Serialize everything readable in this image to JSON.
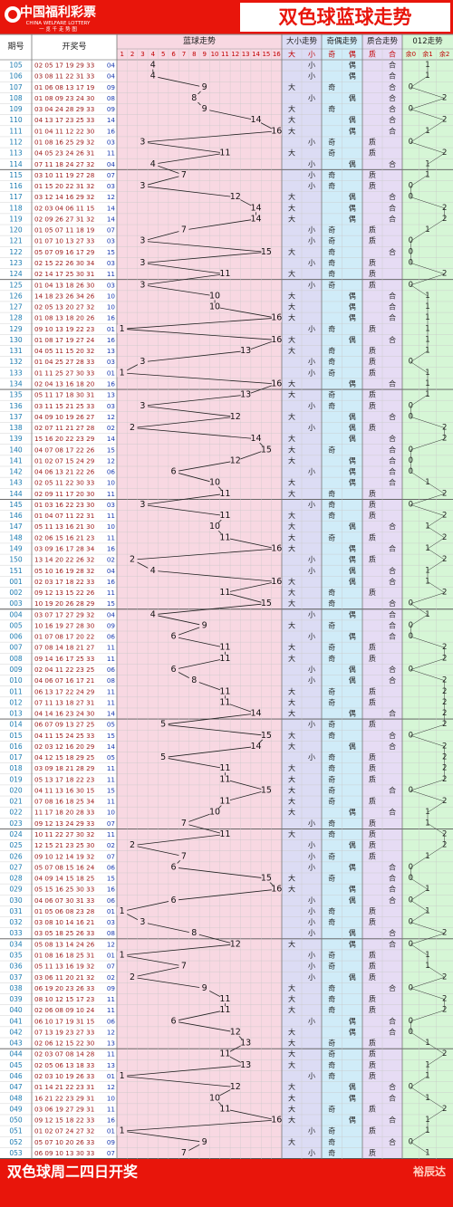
{
  "header": {
    "logo_cn": "中国福利彩票",
    "logo_en": "CHINA WELFARE LOTTERY",
    "logo_sub": "一 览 千 走 势 图",
    "title": "双色球蓝球走势"
  },
  "columns": {
    "period": "期号",
    "draw": "开奖号",
    "blue": "蓝球走势",
    "size": "大小走势",
    "parity": "奇偶走势",
    "prime": "质合走势",
    "mod": "012走势"
  },
  "subcolumns": {
    "blue_numbers": [
      "1",
      "2",
      "3",
      "4",
      "5",
      "6",
      "7",
      "8",
      "9",
      "10",
      "11",
      "12",
      "13",
      "14",
      "15",
      "16"
    ],
    "size": [
      "大",
      "小"
    ],
    "parity": [
      "奇",
      "偶"
    ],
    "prime": [
      "质",
      "合"
    ],
    "mod": [
      "余0",
      "余1",
      "余2"
    ]
  },
  "footer": {
    "left": "双色球周二四日开奖",
    "right": "裕辰达"
  },
  "colors": {
    "header_bg": "#e8150b",
    "title_bg": "#ffffff",
    "title_text": "#e8150b",
    "pink": "#f8d8e2",
    "lavender": "#dcdcf4",
    "blue": "#d0ecf8",
    "lilac": "#e6dcf4",
    "green": "#d6f6d6",
    "period_text": "#1a7ab0",
    "draw_text": "#9c1a1a",
    "grid": "#c8c8c8"
  },
  "chart_data": {
    "type": "table",
    "rows": [
      {
        "p": "105",
        "d": "02 05 17 19 29 33",
        "b": "04"
      },
      {
        "p": "106",
        "d": "03 08 11 22 31 33",
        "b": "04"
      },
      {
        "p": "107",
        "d": "01 06 08 13 17 19",
        "b": "09"
      },
      {
        "p": "108",
        "d": "01 08 09 23 24 30",
        "b": "08"
      },
      {
        "p": "109",
        "d": "03 04 24 28 29 33",
        "b": "09"
      },
      {
        "p": "110",
        "d": "04 13 17 23 25 33",
        "b": "14"
      },
      {
        "p": "111",
        "d": "01 04 11 12 22 30",
        "b": "16"
      },
      {
        "p": "112",
        "d": "01 08 16 25 29 32",
        "b": "03"
      },
      {
        "p": "113",
        "d": "04 05 23 24 26 31",
        "b": "11"
      },
      {
        "p": "114",
        "d": "07 11 18 24 27 32",
        "b": "04"
      },
      {
        "p": "115",
        "d": "03 10 11 19 27 28",
        "b": "07"
      },
      {
        "p": "116",
        "d": "01 15 20 22 31 32",
        "b": "03"
      },
      {
        "p": "117",
        "d": "03 12 14 16 29 32",
        "b": "12"
      },
      {
        "p": "118",
        "d": "02 03 04 06 11 15",
        "b": "14"
      },
      {
        "p": "119",
        "d": "02 09 26 27 31 32",
        "b": "14"
      },
      {
        "p": "120",
        "d": "01 05 07 11 18 19",
        "b": "07"
      },
      {
        "p": "121",
        "d": "01 07 10 13 27 33",
        "b": "03"
      },
      {
        "p": "122",
        "d": "05 07 09 16 17 29",
        "b": "15"
      },
      {
        "p": "123",
        "d": "02 15 22 26 30 34",
        "b": "03"
      },
      {
        "p": "124",
        "d": "02 14 17 25 30 31",
        "b": "11"
      },
      {
        "p": "125",
        "d": "01 04 13 18 26 30",
        "b": "03"
      },
      {
        "p": "126",
        "d": "14 18 23 26 34 26",
        "b": "10"
      },
      {
        "p": "127",
        "d": "02 05 13 20 27 32",
        "b": "10"
      },
      {
        "p": "128",
        "d": "01 08 13 18 20 26",
        "b": "16"
      },
      {
        "p": "129",
        "d": "09 10 13 19 22 23",
        "b": "01"
      },
      {
        "p": "130",
        "d": "01 08 17 19 27 24",
        "b": "16"
      },
      {
        "p": "131",
        "d": "04 05 11 15 20 32",
        "b": "13"
      },
      {
        "p": "132",
        "d": "01 04 25 27 28 33",
        "b": "03"
      },
      {
        "p": "133",
        "d": "01 11 25 27 30 33",
        "b": "01"
      },
      {
        "p": "134",
        "d": "02 04 13 16 18 20",
        "b": "16"
      },
      {
        "p": "135",
        "d": "05 11 17 18 30 31",
        "b": "13"
      },
      {
        "p": "136",
        "d": "03 11 15 21 25 33",
        "b": "03"
      },
      {
        "p": "137",
        "d": "04 09 10 19 26 27",
        "b": "12"
      },
      {
        "p": "138",
        "d": "02 07 11 21 27 28",
        "b": "02"
      },
      {
        "p": "139",
        "d": "15 16 20 22 23 29",
        "b": "14"
      },
      {
        "p": "140",
        "d": "04 07 08 17 22 26",
        "b": "15"
      },
      {
        "p": "141",
        "d": "01 02 07 15 24 29",
        "b": "12"
      },
      {
        "p": "142",
        "d": "04 06 13 21 22 26",
        "b": "06"
      },
      {
        "p": "143",
        "d": "02 05 11 22 30 33",
        "b": "10"
      },
      {
        "p": "144",
        "d": "02 09 11 17 20 30",
        "b": "11"
      },
      {
        "p": "145",
        "d": "01 03 16 22 23 30",
        "b": "03"
      },
      {
        "p": "146",
        "d": "01 04 07 11 22 31",
        "b": "11"
      },
      {
        "p": "147",
        "d": "05 11 13 16 21 30",
        "b": "10"
      },
      {
        "p": "148",
        "d": "02 06 15 16 21 23",
        "b": "11"
      },
      {
        "p": "149",
        "d": "03 09 16 17 28 34",
        "b": "16"
      },
      {
        "p": "150",
        "d": "13 14 20 22 26 32",
        "b": "02"
      },
      {
        "p": "151",
        "d": "05 10 16 19 28 32",
        "b": "04"
      },
      {
        "p": "001",
        "d": "02 03 17 18 22 33",
        "b": "16"
      },
      {
        "p": "002",
        "d": "09 12 13 15 22 26",
        "b": "11"
      },
      {
        "p": "003",
        "d": "10 19 20 26 28 29",
        "b": "15"
      },
      {
        "p": "004",
        "d": "03 07 17 27 29 32",
        "b": "04"
      },
      {
        "p": "005",
        "d": "10 16 19 27 28 30",
        "b": "09"
      },
      {
        "p": "006",
        "d": "01 07 08 17 20 22",
        "b": "06"
      },
      {
        "p": "007",
        "d": "07 08 14 18 21 27",
        "b": "11"
      },
      {
        "p": "008",
        "d": "09 14 16 17 25 33",
        "b": "11"
      },
      {
        "p": "009",
        "d": "02 04 11 22 23 25",
        "b": "06"
      },
      {
        "p": "010",
        "d": "04 06 07 16 17 21",
        "b": "08"
      },
      {
        "p": "011",
        "d": "06 13 17 22 24 29",
        "b": "11"
      },
      {
        "p": "012",
        "d": "07 11 13 18 27 31",
        "b": "11"
      },
      {
        "p": "013",
        "d": "04 14 16 23 24 30",
        "b": "14"
      },
      {
        "p": "014",
        "d": "06 07 09 13 27 25",
        "b": "05"
      },
      {
        "p": "015",
        "d": "04 11 15 24 25 33",
        "b": "15"
      },
      {
        "p": "016",
        "d": "02 03 12 16 20 29",
        "b": "14"
      },
      {
        "p": "017",
        "d": "04 12 15 18 29 25",
        "b": "05"
      },
      {
        "p": "018",
        "d": "03 09 18 21 28 29",
        "b": "11"
      },
      {
        "p": "019",
        "d": "05 13 17 18 22 23",
        "b": "11"
      },
      {
        "p": "020",
        "d": "04 11 13 16 30 15",
        "b": "15"
      },
      {
        "p": "021",
        "d": "07 08 16 18 25 34",
        "b": "11"
      },
      {
        "p": "022",
        "d": "11 17 18 20 28 33",
        "b": "10"
      },
      {
        "p": "023",
        "d": "09 12 13 24 29 33",
        "b": "07"
      },
      {
        "p": "024",
        "d": "10 11 22 27 30 32",
        "b": "11"
      },
      {
        "p": "025",
        "d": "12 15 21 23 25 30",
        "b": "02"
      },
      {
        "p": "026",
        "d": "09 10 12 14 19 32",
        "b": "07"
      },
      {
        "p": "027",
        "d": "05 07 08 15 16 24",
        "b": "06"
      },
      {
        "p": "028",
        "d": "04 09 14 15 18 25",
        "b": "15"
      },
      {
        "p": "029",
        "d": "05 15 16 25 30 33",
        "b": "16"
      },
      {
        "p": "030",
        "d": "04 06 07 30 31 33",
        "b": "06"
      },
      {
        "p": "031",
        "d": "01 05 06 08 23 28",
        "b": "01"
      },
      {
        "p": "032",
        "d": "03 08 10 14 16 21",
        "b": "03"
      },
      {
        "p": "033",
        "d": "03 05 18 25 26 33",
        "b": "08"
      },
      {
        "p": "034",
        "d": "05 08 13 14 24 26",
        "b": "12"
      },
      {
        "p": "035",
        "d": "01 08 16 18 25 31",
        "b": "01"
      },
      {
        "p": "036",
        "d": "05 11 13 16 19 32",
        "b": "07"
      },
      {
        "p": "037",
        "d": "03 06 11 20 21 32",
        "b": "02"
      },
      {
        "p": "038",
        "d": "06 19 20 23 26 33",
        "b": "09"
      },
      {
        "p": "039",
        "d": "08 10 12 15 17 23",
        "b": "11"
      },
      {
        "p": "040",
        "d": "02 06 08 09 10 24",
        "b": "11"
      },
      {
        "p": "041",
        "d": "06 10 17 19 31 15",
        "b": "06"
      },
      {
        "p": "042",
        "d": "07 13 19 23 27 33",
        "b": "12"
      },
      {
        "p": "043",
        "d": "02 06 12 15 22 30",
        "b": "13"
      },
      {
        "p": "044",
        "d": "02 03 07 08 14 28",
        "b": "11"
      },
      {
        "p": "045",
        "d": "02 05 06 13 18 33",
        "b": "13"
      },
      {
        "p": "046",
        "d": "02 03 10 19 26 33",
        "b": "01"
      },
      {
        "p": "047",
        "d": "01 14 21 22 23 31",
        "b": "12"
      },
      {
        "p": "048",
        "d": "16 21 22 23 29 31",
        "b": "10"
      },
      {
        "p": "049",
        "d": "03 06 19 27 29 31",
        "b": "11"
      },
      {
        "p": "050",
        "d": "09 12 15 18 22 33",
        "b": "16"
      },
      {
        "p": "051",
        "d": "01 02 07 24 27 32",
        "b": "01"
      },
      {
        "p": "052",
        "d": "05 07 10 20 26 33",
        "b": "09"
      },
      {
        "p": "053",
        "d": "06 09 10 13 30 33",
        "b": "07"
      }
    ]
  }
}
